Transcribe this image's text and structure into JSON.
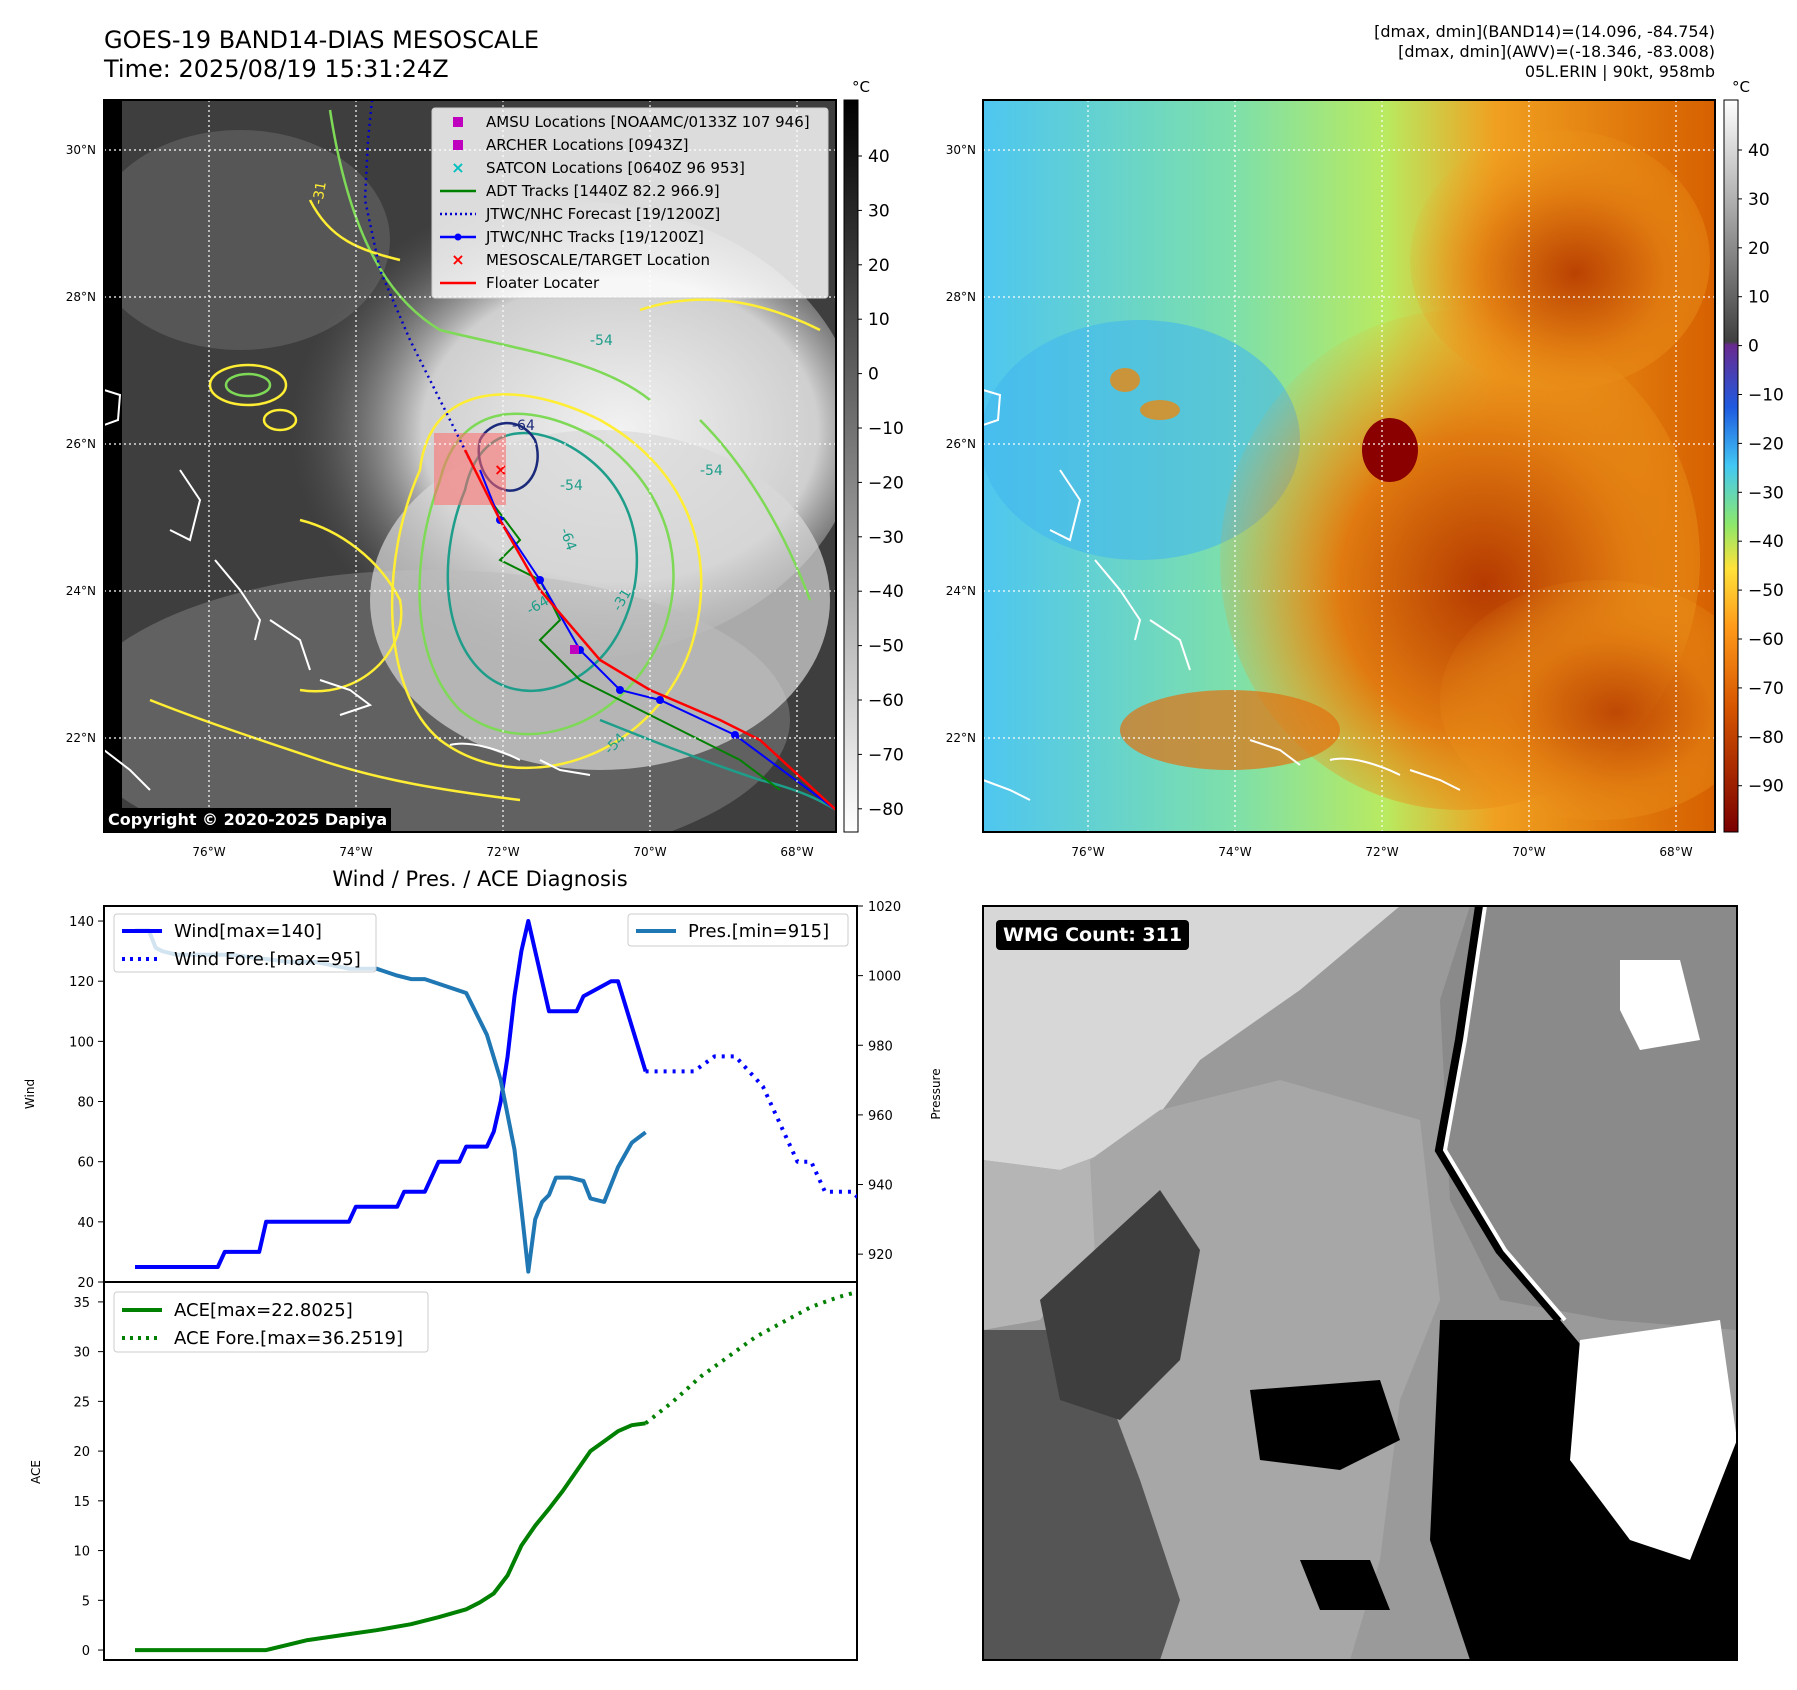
{
  "header": {
    "title_line1": "GOES-19 BAND14-DIAS MESOSCALE",
    "title_line2": "Time: 2025/08/19 15:31:24Z",
    "info_line1": "[dmax, dmin](BAND14)=(14.096, -84.754)",
    "info_line2": "[dmax, dmin](AWV)=(-18.346, -83.008)",
    "info_line3": "05L.ERIN | 90kt, 958mb"
  },
  "map_left": {
    "copyright": "Copyright © 2020-2025 Dapiya",
    "lat_labels": [
      "30°N",
      "28°N",
      "26°N",
      "24°N",
      "22°N"
    ],
    "lon_labels": [
      "76°W",
      "74°W",
      "72°W",
      "70°W",
      "68°W"
    ],
    "colorbar_unit": "°C",
    "colorbar_ticks": [
      "40",
      "30",
      "20",
      "10",
      "0",
      "−10",
      "−20",
      "−30",
      "−40",
      "−50",
      "−60",
      "−70",
      "−80"
    ],
    "contour_labels": [
      "-31",
      "-54",
      "-64",
      "-54",
      "-64",
      "-54",
      "-31",
      "-64",
      "-54"
    ],
    "legend": [
      {
        "label": "AMSU Locations [NOAAMC/0133Z 107 946]",
        "color": "#bf00bf",
        "marker": "square"
      },
      {
        "label": "ARCHER Locations [0943Z]",
        "color": "#bf00bf",
        "marker": "square"
      },
      {
        "label": "SATCON Locations [0640Z 96 953]",
        "color": "#00bfbf",
        "marker": "x"
      },
      {
        "label": "ADT Tracks [1440Z 82.2 966.9]",
        "color": "#008000",
        "marker": "line"
      },
      {
        "label": "JTWC/NHC Forecast [19/1200Z]",
        "color": "#0000cc",
        "marker": "dotted"
      },
      {
        "label": "JTWC/NHC Tracks [19/1200Z]",
        "color": "#0000ff",
        "marker": "line-dot"
      },
      {
        "label": "MESOSCALE/TARGET Location",
        "color": "#ff0000",
        "marker": "x"
      },
      {
        "label": "Floater Locater",
        "color": "#ff0000",
        "marker": "line"
      }
    ]
  },
  "map_right": {
    "lat_labels": [
      "30°N",
      "28°N",
      "26°N",
      "24°N",
      "22°N"
    ],
    "lon_labels": [
      "76°W",
      "74°W",
      "72°W",
      "70°W",
      "68°W"
    ],
    "colorbar_unit": "°C",
    "colorbar_ticks": [
      "40",
      "30",
      "20",
      "10",
      "0",
      "−10",
      "−20",
      "−30",
      "−40",
      "−50",
      "−60",
      "−70",
      "−80",
      "−90"
    ]
  },
  "wmg": {
    "label": "WMG Count: 311"
  },
  "colors": {
    "wind": "#0000ff",
    "pressure": "#1f77b4",
    "ace": "#008000",
    "floater": "#ff0000",
    "contour_yellow": "#ffee33",
    "contour_green": "#7ed957",
    "contour_teal": "#1e9e8a",
    "contour_navy": "#1b2a7a"
  },
  "chart_data": [
    {
      "type": "line",
      "title": "Wind / Pres. / ACE Diagnosis",
      "ylabel": "Wind",
      "ylabel_right": "Pressure",
      "ylim": [
        20,
        145
      ],
      "ylim_right": [
        912,
        1020
      ],
      "yticks": [
        "20",
        "40",
        "60",
        "80",
        "100",
        "120",
        "140"
      ],
      "yticks_right": [
        "920",
        "940",
        "960",
        "980",
        "1000",
        "1020"
      ],
      "x": [
        0,
        1,
        2,
        3,
        4,
        5,
        6,
        7,
        8,
        9,
        10,
        11,
        12,
        13,
        14,
        15,
        16,
        17,
        18,
        19,
        20,
        21,
        22,
        23,
        24,
        25,
        26,
        27,
        28,
        29,
        30,
        31,
        32,
        33,
        34,
        35,
        36,
        37,
        38,
        39,
        40,
        41,
        42,
        43,
        44,
        45,
        46,
        47,
        48,
        49,
        50,
        51,
        52,
        53,
        54,
        55,
        56,
        57,
        58,
        59,
        60,
        61,
        62,
        63,
        64,
        65,
        66,
        67,
        68,
        69,
        70,
        71,
        72
      ],
      "series": [
        {
          "name": "Wind[max=140]",
          "axis": "left",
          "style": "solid",
          "x": [
            0,
            12,
            13,
            18,
            19,
            31,
            32,
            38,
            39,
            42,
            44,
            47,
            48,
            51,
            52,
            53,
            54,
            55,
            56,
            57,
            58,
            60,
            61,
            64,
            65,
            69,
            70,
            74
          ],
          "values": [
            25,
            25,
            30,
            30,
            40,
            40,
            45,
            45,
            50,
            50,
            60,
            60,
            65,
            65,
            70,
            80,
            95,
            115,
            130,
            140,
            130,
            110,
            110,
            110,
            115,
            120,
            120,
            90
          ]
        },
        {
          "name": "Wind Fore.[max=95]",
          "axis": "left",
          "style": "dotted",
          "x": [
            74,
            78,
            81,
            84,
            87,
            89,
            91,
            92,
            94,
            95,
            96,
            98,
            100,
            102,
            104,
            106
          ],
          "values": [
            90,
            90,
            90,
            95,
            95,
            90,
            85,
            80,
            70,
            65,
            60,
            60,
            50,
            50,
            50,
            45
          ]
        },
        {
          "name": "Pres.[min=915]",
          "axis": "right",
          "style": "solid",
          "x": [
            0,
            2,
            3,
            4,
            6,
            10,
            14,
            22,
            26,
            31,
            35,
            38,
            40,
            42,
            48,
            51,
            53,
            55,
            56,
            57,
            58,
            59,
            60,
            61,
            63,
            65,
            66,
            68,
            69,
            70,
            72,
            74
          ],
          "values": [
            1013,
            1013,
            1008,
            1007,
            1006,
            1006,
            1006,
            1004,
            1004,
            1002,
            1002,
            1000,
            999,
            999,
            995,
            983,
            970,
            950,
            933,
            915,
            930,
            935,
            937,
            942,
            942,
            941,
            936,
            935,
            940,
            945,
            952,
            955
          ]
        }
      ]
    },
    {
      "type": "line",
      "ylabel": "ACE",
      "ylim": [
        -1,
        37
      ],
      "yticks": [
        "0",
        "5",
        "10",
        "15",
        "20",
        "25",
        "30",
        "35"
      ],
      "series": [
        {
          "name": "ACE[max=22.8025]",
          "style": "solid",
          "x": [
            0,
            10,
            19,
            25,
            30,
            35,
            40,
            44,
            48,
            50,
            52,
            54,
            55,
            56,
            58,
            60,
            62,
            64,
            66,
            68,
            70,
            72,
            74
          ],
          "values": [
            0,
            0,
            0,
            1,
            1.5,
            2,
            2.6,
            3.3,
            4.1,
            4.8,
            5.7,
            7.5,
            9,
            10.5,
            12.5,
            14.2,
            16,
            18,
            20,
            21,
            22,
            22.6,
            22.8
          ]
        },
        {
          "name": "ACE Fore.[max=36.2519]",
          "style": "dotted",
          "x": [
            74,
            78,
            82,
            86,
            90,
            94,
            98,
            102,
            106
          ],
          "values": [
            22.8,
            25,
            27.5,
            29.5,
            31.5,
            33,
            34.5,
            35.5,
            36.25
          ]
        }
      ]
    }
  ]
}
